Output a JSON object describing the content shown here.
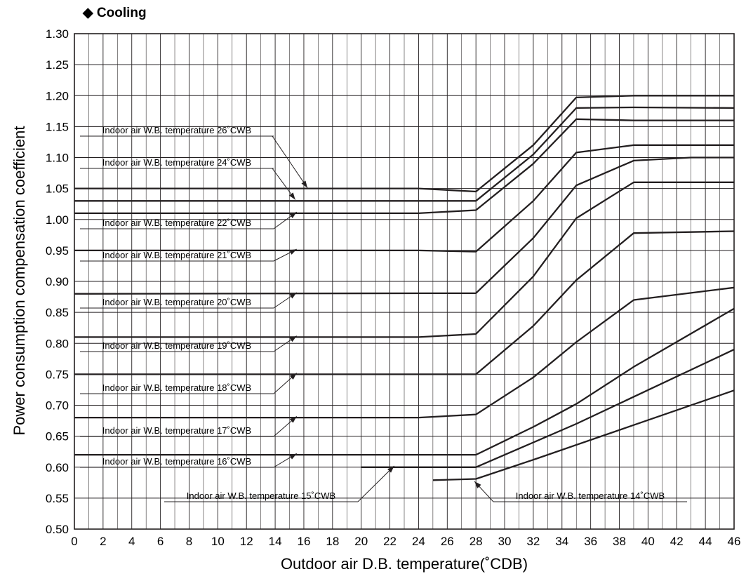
{
  "chart_data": {
    "type": "line",
    "title": "Cooling",
    "title_marker": "◆",
    "xlabel": "Outdoor air D.B. temperature(˚CDB)",
    "ylabel": "Power consumption compensation coefficient",
    "xlim": [
      0,
      46
    ],
    "ylim": [
      0.5,
      1.3
    ],
    "grid": true,
    "x_ticks": [
      0,
      2,
      4,
      6,
      8,
      10,
      12,
      14,
      16,
      18,
      20,
      22,
      24,
      26,
      28,
      30,
      32,
      34,
      36,
      38,
      40,
      42,
      44,
      46
    ],
    "y_ticks": [
      "0.50",
      "0.55",
      "0.60",
      "0.65",
      "0.70",
      "0.75",
      "0.80",
      "0.85",
      "0.90",
      "0.95",
      "1.00",
      "1.05",
      "1.10",
      "1.15",
      "1.20",
      "1.25",
      "1.30"
    ],
    "series": [
      {
        "name": "Indoor air W.B. temperature 26˚CWB",
        "x": [
          0,
          24,
          28,
          32,
          35,
          39,
          46
        ],
        "y": [
          1.05,
          1.05,
          1.045,
          1.12,
          1.197,
          1.2,
          1.2
        ]
      },
      {
        "name": "Indoor air W.B. temperature 24˚CWB",
        "x": [
          0,
          28,
          32,
          35,
          39,
          46
        ],
        "y": [
          1.03,
          1.03,
          1.105,
          1.18,
          1.181,
          1.18
        ]
      },
      {
        "name": "Indoor air W.B. temperature 22˚CWB",
        "x": [
          0,
          24,
          28,
          32,
          35,
          39,
          46
        ],
        "y": [
          1.01,
          1.01,
          1.015,
          1.09,
          1.162,
          1.16,
          1.16
        ]
      },
      {
        "name": "Indoor air W.B. temperature 21˚CWB",
        "x": [
          0,
          24,
          28,
          32,
          35,
          39,
          46
        ],
        "y": [
          0.95,
          0.95,
          0.948,
          1.03,
          1.108,
          1.12,
          1.12
        ]
      },
      {
        "name": "Indoor air W.B. temperature 20˚CWB",
        "x": [
          0,
          28,
          32,
          35,
          39,
          43,
          46
        ],
        "y": [
          0.88,
          0.881,
          0.97,
          1.055,
          1.095,
          1.1,
          1.1
        ]
      },
      {
        "name": "Indoor air W.B. temperature 19˚CWB",
        "x": [
          0,
          24,
          28,
          32,
          35,
          39,
          46
        ],
        "y": [
          0.81,
          0.81,
          0.815,
          0.908,
          1.002,
          1.06,
          1.06
        ]
      },
      {
        "name": "Indoor air W.B. temperature 18˚CWB",
        "x": [
          0,
          28,
          32,
          35,
          39,
          46
        ],
        "y": [
          0.75,
          0.75,
          0.828,
          0.902,
          0.978,
          0.981
        ]
      },
      {
        "name": "Indoor air W.B. temperature 17˚CWB",
        "x": [
          0,
          24,
          28,
          32,
          35,
          39,
          46
        ],
        "y": [
          0.68,
          0.68,
          0.685,
          0.745,
          0.802,
          0.87,
          0.89
        ]
      },
      {
        "name": "Indoor air W.B. temperature 16˚CWB",
        "x": [
          0,
          28,
          32,
          35,
          39,
          46
        ],
        "y": [
          0.62,
          0.62,
          0.665,
          0.702,
          0.762,
          0.856
        ]
      },
      {
        "name": "Indoor air W.B. temperature 15˚CWB",
        "x": [
          20,
          28,
          32,
          35,
          46
        ],
        "y": [
          0.6,
          0.6,
          0.64,
          0.67,
          0.79
        ]
      },
      {
        "name": "Indoor air W.B. temperature 14˚CWB",
        "x": [
          25,
          28,
          32,
          46
        ],
        "y": [
          0.579,
          0.581,
          0.612,
          0.724
        ]
      }
    ]
  }
}
